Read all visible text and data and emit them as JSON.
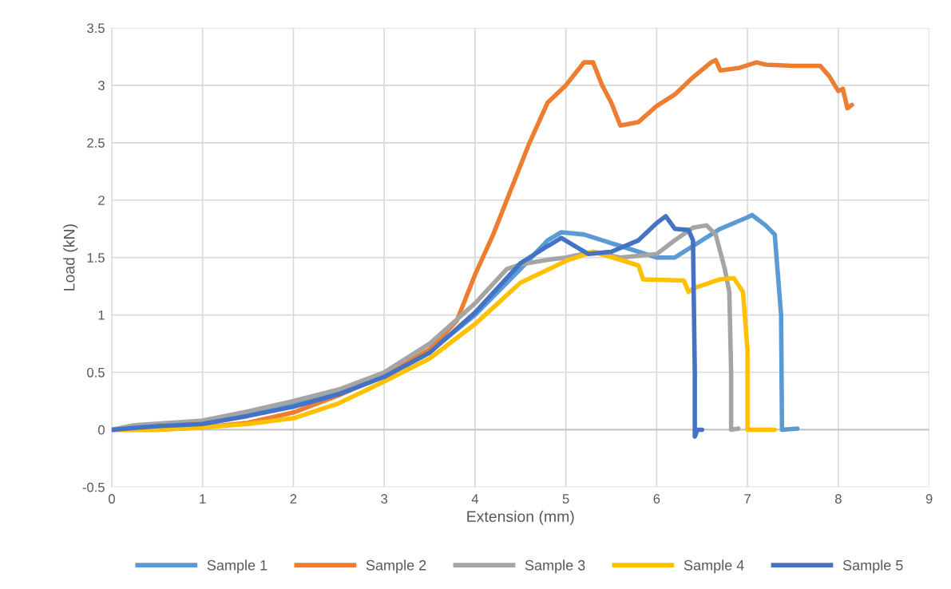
{
  "chart_data": {
    "type": "line",
    "xlabel": "Extension (mm)",
    "ylabel": "Load (kN)",
    "xlim": [
      0,
      9
    ],
    "xticks": [
      0,
      1,
      2,
      3,
      4,
      5,
      6,
      7,
      8,
      9
    ],
    "ylim": [
      -0.5,
      3.5
    ],
    "yticks": [
      -0.5,
      0,
      0.5,
      1,
      1.5,
      2,
      2.5,
      3,
      3.5
    ],
    "grid": true,
    "legend": "bottom",
    "marker": "none",
    "line_style": "solid",
    "series": [
      {
        "name": "Sample 1",
        "color": "#5b9bd5",
        "x": [
          0,
          0.5,
          1,
          1.5,
          2,
          2.5,
          3,
          3.5,
          4,
          4.5,
          4.8,
          4.95,
          5.2,
          5.6,
          6.0,
          6.2,
          6.4,
          6.7,
          7.0,
          7.05,
          7.2,
          7.3,
          7.37,
          7.38,
          7.55
        ],
        "values": [
          0,
          0.03,
          0.06,
          0.13,
          0.22,
          0.33,
          0.47,
          0.68,
          1.0,
          1.4,
          1.65,
          1.72,
          1.7,
          1.6,
          1.5,
          1.5,
          1.6,
          1.75,
          1.85,
          1.87,
          1.78,
          1.7,
          1.0,
          0,
          0.01
        ]
      },
      {
        "name": "Sample 2",
        "color": "#ed7d31",
        "x": [
          0,
          0.5,
          1,
          1.5,
          2,
          2.5,
          3,
          3.5,
          3.8,
          4,
          4.2,
          4.4,
          4.6,
          4.8,
          5,
          5.1,
          5.2,
          5.3,
          5.4,
          5.5,
          5.6,
          5.8,
          6,
          6.2,
          6.4,
          6.6,
          6.65,
          6.7,
          6.9,
          7.1,
          7.2,
          7.5,
          7.8,
          7.9,
          8,
          8.05,
          8.1,
          8.15
        ],
        "values": [
          0,
          0,
          0.02,
          0.06,
          0.15,
          0.3,
          0.47,
          0.7,
          0.95,
          1.35,
          1.7,
          2.1,
          2.5,
          2.85,
          3.0,
          3.1,
          3.2,
          3.2,
          3.0,
          2.85,
          2.65,
          2.68,
          2.82,
          2.92,
          3.07,
          3.2,
          3.22,
          3.13,
          3.15,
          3.2,
          3.18,
          3.17,
          3.17,
          3.08,
          2.95,
          2.97,
          2.8,
          2.83
        ]
      },
      {
        "name": "Sample 3",
        "color": "#a5a5a5",
        "x": [
          0,
          0.25,
          1,
          1.5,
          2,
          2.5,
          3,
          3.5,
          4,
          4.35,
          4.5,
          4.8,
          5.0,
          5.3,
          5.6,
          6.0,
          6.2,
          6.4,
          6.55,
          6.65,
          6.75,
          6.8,
          6.82,
          6.82,
          6.9
        ],
        "values": [
          0,
          0.04,
          0.08,
          0.16,
          0.25,
          0.35,
          0.5,
          0.75,
          1.1,
          1.4,
          1.44,
          1.48,
          1.5,
          1.55,
          1.5,
          1.53,
          1.65,
          1.76,
          1.78,
          1.7,
          1.4,
          1.2,
          0.5,
          0,
          0.01
        ]
      },
      {
        "name": "Sample 4",
        "color": "#ffc000",
        "x": [
          0,
          0.5,
          1,
          1.5,
          2,
          2.5,
          3,
          3.5,
          4,
          4.5,
          5,
          5.3,
          5.6,
          5.8,
          5.85,
          6.3,
          6.35,
          6.4,
          6.7,
          6.85,
          6.95,
          7.0,
          7.0,
          7.3
        ],
        "values": [
          0,
          0,
          0.02,
          0.05,
          0.1,
          0.23,
          0.42,
          0.62,
          0.92,
          1.28,
          1.47,
          1.55,
          1.48,
          1.43,
          1.31,
          1.3,
          1.2,
          1.23,
          1.31,
          1.32,
          1.2,
          0.7,
          0,
          0
        ]
      },
      {
        "name": "Sample 5",
        "color": "#4472c4",
        "x": [
          0,
          0.5,
          1,
          1.5,
          2,
          2.5,
          3,
          3.5,
          4,
          4.5,
          4.8,
          4.95,
          5.1,
          5.25,
          5.5,
          5.8,
          6.0,
          6.1,
          6.2,
          6.35,
          6.4,
          6.42,
          6.42,
          6.45,
          6.5
        ],
        "values": [
          0,
          0.03,
          0.05,
          0.12,
          0.2,
          0.31,
          0.46,
          0.67,
          1.02,
          1.45,
          1.6,
          1.67,
          1.6,
          1.53,
          1.55,
          1.65,
          1.8,
          1.86,
          1.75,
          1.74,
          1.65,
          0.5,
          -0.06,
          0,
          0
        ]
      }
    ]
  }
}
